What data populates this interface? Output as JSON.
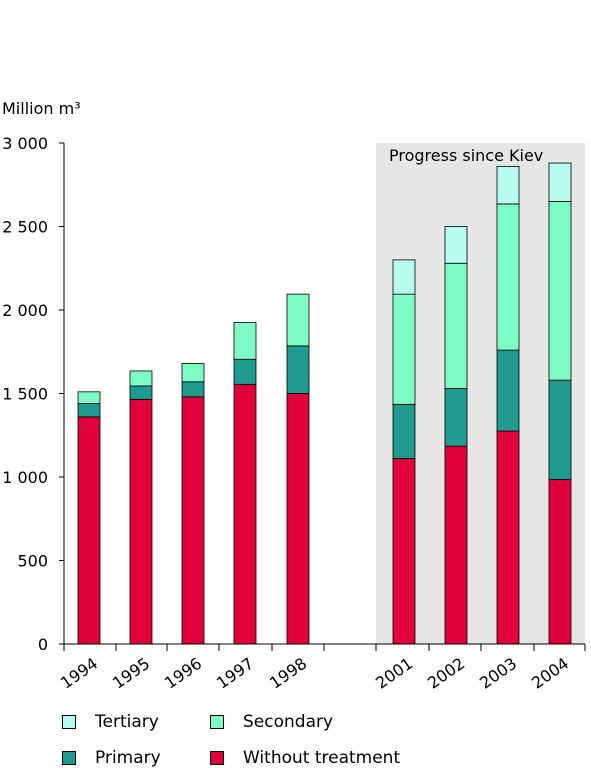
{
  "chart_data": {
    "type": "bar",
    "stacked": true,
    "ylabel": "Million m³",
    "ylim": [
      0,
      3000
    ],
    "yticks": [
      {
        "value": 0,
        "label": "0"
      },
      {
        "value": 500,
        "label": "500"
      },
      {
        "value": 1000,
        "label": "1 000"
      },
      {
        "value": 1500,
        "label": "1 500"
      },
      {
        "value": 2000,
        "label": "2 000"
      },
      {
        "value": 2500,
        "label": "2 500"
      },
      {
        "value": 3000,
        "label": "3 000"
      }
    ],
    "categories": [
      "1994",
      "1995",
      "1996",
      "1997",
      "1998",
      "2001",
      "2002",
      "2003",
      "2004"
    ],
    "series": [
      {
        "name": "Without treatment",
        "color": "#e0003a",
        "values": [
          1360,
          1465,
          1480,
          1555,
          1500,
          1110,
          1185,
          1275,
          985
        ]
      },
      {
        "name": "Primary",
        "color": "#1e9a8e",
        "values": [
          80,
          80,
          90,
          150,
          285,
          325,
          345,
          485,
          595
        ]
      },
      {
        "name": "Secondary",
        "color": "#7dfcc6",
        "values": [
          70,
          90,
          110,
          220,
          310,
          660,
          750,
          875,
          1070
        ]
      },
      {
        "name": "Tertiary",
        "color": "#b8fbef",
        "values": [
          0,
          0,
          0,
          0,
          0,
          205,
          220,
          225,
          230
        ]
      }
    ],
    "annotation": {
      "label": "Progress since Kiev",
      "from_category": "2001",
      "to_category": "2004",
      "fill": "#e6e6e6"
    },
    "grid": false
  },
  "legend": {
    "tertiary": "Tertiary",
    "secondary": "Secondary",
    "primary": "Primary",
    "without": "Without treatment"
  },
  "colors": {
    "without": "#e0003a",
    "primary": "#1e9a8e",
    "secondary": "#7dfcc6",
    "tertiary": "#b8fbef"
  }
}
